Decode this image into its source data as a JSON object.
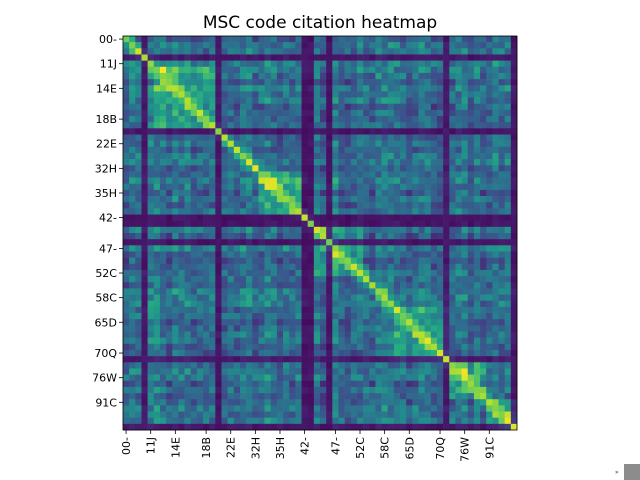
{
  "window": {
    "corner_glyph": "»"
  },
  "chart_data": {
    "type": "heatmap",
    "title": "MSC code citation heatmap",
    "xlabel": "",
    "ylabel": "",
    "colormap": "viridis",
    "matrix_size": 64,
    "grid": false,
    "legend": "none",
    "x_tick_labels": [
      "00-",
      "11J",
      "14E",
      "18B",
      "22E",
      "32H",
      "35H",
      "42-",
      "47-",
      "52C",
      "58C",
      "65D",
      "70Q",
      "76W",
      "91C"
    ],
    "y_tick_labels": [
      "00-",
      "11J",
      "14E",
      "18B",
      "22E",
      "32H",
      "35H",
      "42-",
      "47-",
      "52C",
      "58C",
      "65D",
      "70Q",
      "76W",
      "91C"
    ],
    "tick_indices": [
      0,
      4,
      8,
      13,
      17,
      21,
      25,
      29,
      34,
      38,
      42,
      46,
      51,
      55,
      59
    ],
    "dark_band_indices": [
      3,
      15,
      29,
      30,
      33,
      52,
      63
    ],
    "bright_blocks": [
      [
        5,
        14
      ],
      [
        22,
        28
      ],
      [
        31,
        38
      ],
      [
        44,
        52
      ],
      [
        52,
        58
      ],
      [
        58,
        63
      ]
    ],
    "value_range": [
      0,
      1
    ],
    "diagonal_value": 1.0
  },
  "colors": {
    "viridis_low": "#440154",
    "viridis_mid": "#21918c",
    "viridis_high": "#fde725",
    "axis": "#000000",
    "background": "#ffffff"
  }
}
